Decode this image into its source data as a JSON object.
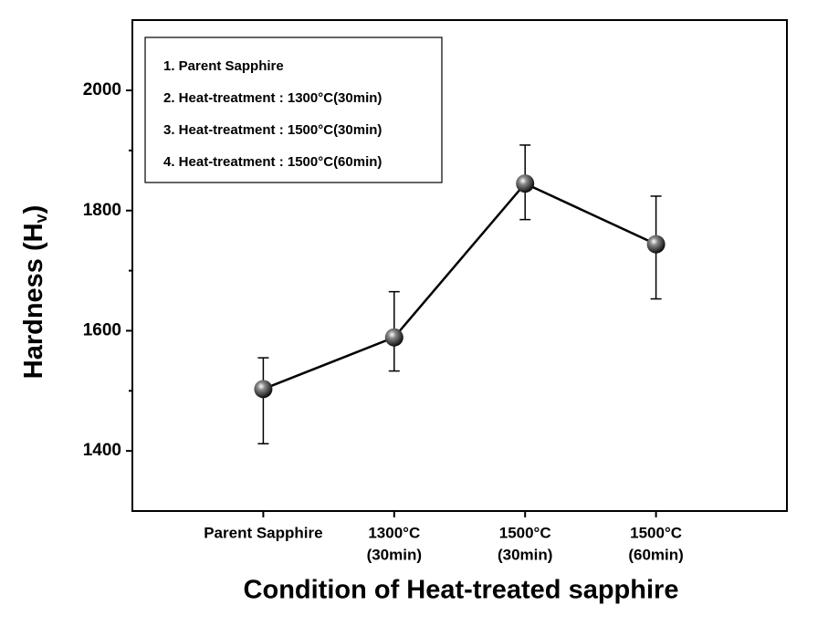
{
  "chart_data": {
    "type": "line",
    "x_label": "Condition of Heat-treated sapphire",
    "y_label_parts": [
      "Hardness (H",
      "v",
      ")"
    ],
    "categories": [
      [
        "Parent Sapphire"
      ],
      [
        "1300°C",
        "(30min)"
      ],
      [
        "1500°C",
        "(30min)"
      ],
      [
        "1500°C",
        "(60min)"
      ]
    ],
    "series": [
      {
        "color": "#000000",
        "values": [
          1503,
          1589,
          1845,
          1744
        ],
        "error_minus": [
          91,
          56,
          60,
          91
        ],
        "error_plus": [
          52,
          76,
          64,
          80
        ]
      }
    ],
    "ylim": [
      1300,
      2117
    ],
    "yticks": [
      1400,
      1600,
      1800,
      2000
    ],
    "yminor": [
      1500,
      1700,
      1900
    ],
    "legend_items": [
      "1. Parent Sapphire",
      "2. Heat-treatment : 1300°C(30min)",
      "3. Heat-treatment : 1500°C(30min)",
      "4. Heat-treatment : 1500°C(60min)"
    ],
    "legend_position": "upper left"
  }
}
